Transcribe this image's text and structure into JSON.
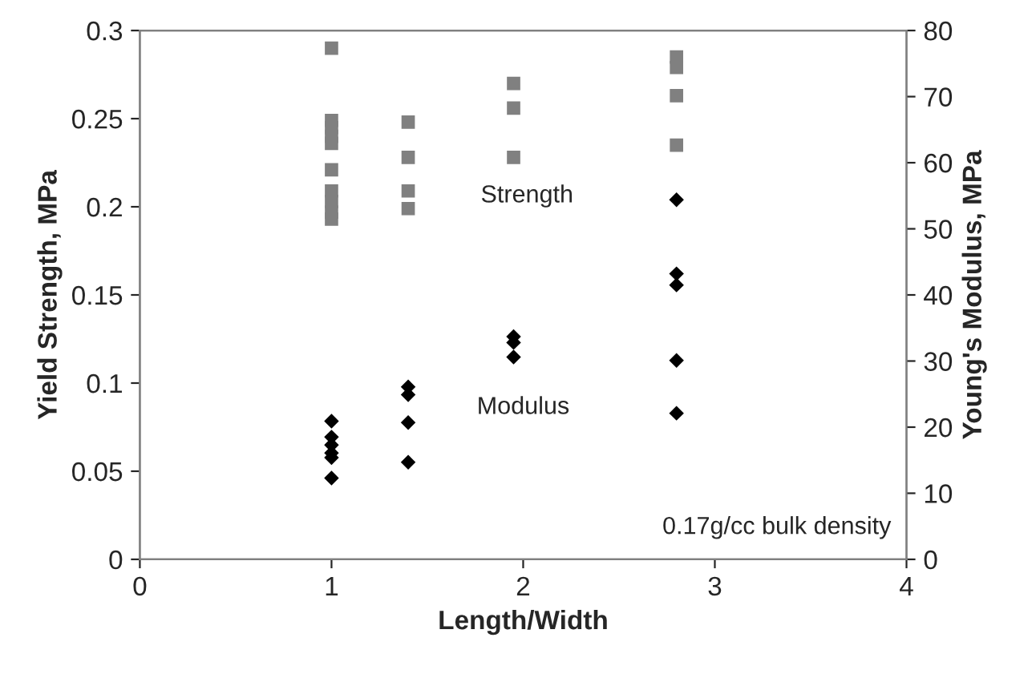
{
  "chart_data": {
    "type": "scatter",
    "xlabel": "Length/Width",
    "ylabel": "Yield Strength, MPa",
    "y2label": "Young's Modulus, MPa",
    "xlim": [
      0,
      4
    ],
    "xticks": [
      0,
      1,
      2,
      3,
      4
    ],
    "ylim": [
      0,
      0.3
    ],
    "yticks": [
      0,
      0.05,
      0.1,
      0.15,
      0.2,
      0.25,
      0.3
    ],
    "y2lim": [
      0,
      80
    ],
    "y2ticks": [
      0,
      10,
      20,
      30,
      40,
      50,
      60,
      70,
      80
    ],
    "grid": false,
    "legend": false,
    "series": [
      {
        "color": "#808080",
        "marker": "square",
        "x": [
          1,
          1,
          1,
          1,
          1,
          1,
          1,
          1,
          1,
          1,
          1.4,
          1.4,
          1.4,
          1.4,
          1.95,
          1.95,
          1.95,
          2.8,
          2.8,
          2.8,
          2.8
        ],
        "values": [
          0.29,
          0.249,
          0.245,
          0.24,
          0.236,
          0.221,
          0.209,
          0.203,
          0.197,
          0.193,
          0.248,
          0.228,
          0.209,
          0.199,
          0.27,
          0.256,
          0.228,
          0.285,
          0.279,
          0.263,
          0.235
        ]
      },
      {
        "color": "#000000",
        "marker": "diamond",
        "axis": "y2",
        "x": [
          1,
          1,
          1,
          1,
          1,
          1,
          1.4,
          1.4,
          1.4,
          1.4,
          1.95,
          1.95,
          1.95,
          2.8,
          2.8,
          2.8,
          2.8,
          2.8
        ],
        "values": [
          20.9,
          18.5,
          17.3,
          16.1,
          15.4,
          12.3,
          26.1,
          24.9,
          20.7,
          14.7,
          33.7,
          32.8,
          30.6,
          54.4,
          43.2,
          41.5,
          30.1,
          22.1
        ]
      }
    ],
    "annotations": [
      "Strength",
      "Modulus",
      "0.17g/cc bulk density"
    ]
  }
}
